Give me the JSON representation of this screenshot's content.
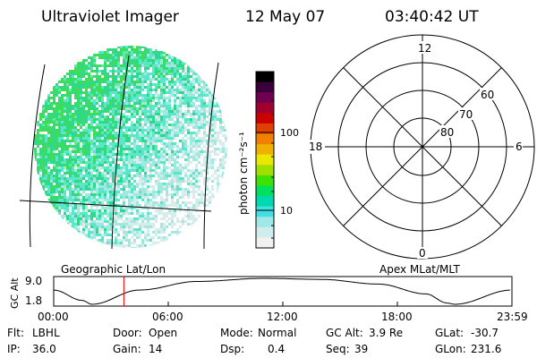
{
  "header": {
    "title": "Ultraviolet Imager",
    "date": "12 May 07",
    "time": "03:40:42 UT"
  },
  "colorbar": {
    "unit_label": "photon cm⁻²s⁻¹",
    "ticks": [
      "100",
      "10"
    ],
    "colors": [
      "#000000",
      "#3a003a",
      "#700050",
      "#a00030",
      "#cc0000",
      "#e04000",
      "#f08000",
      "#f0b000",
      "#e8e800",
      "#a0e000",
      "#40e000",
      "#00e060",
      "#00d8b0",
      "#40e0e0",
      "#a0e8e8",
      "#d0ecec",
      "#f0f0f0"
    ]
  },
  "image_panel": {
    "colors": [
      "#3ddc5a",
      "#2fd88c",
      "#5ae6c8",
      "#a0e8e0",
      "#d8ecec",
      "#ffffff"
    ]
  },
  "polar_panel": {
    "mlt_labels": {
      "top": "12",
      "left": "18",
      "right": "6",
      "bottom": "0"
    },
    "lat_labels": [
      "60",
      "70",
      "80"
    ]
  },
  "orbit_panel": {
    "left_title": "Geographic Lat/Lon",
    "right_title": "Apex MLat/MLT",
    "y_axis_label": "GC Alt",
    "y_ticks": [
      "9.0",
      "1.8"
    ],
    "x_ticks": [
      "00:00",
      "06:00",
      "12:00",
      "18:00",
      "23:59"
    ],
    "marker_time_hours": 3.678,
    "marker_color": "#ff0000"
  },
  "info": {
    "flt_label": "Flt:",
    "flt_value": "LBHL",
    "ip_label": "IP:",
    "ip_value": "36.0",
    "door_label": "Door:",
    "door_value": "Open",
    "gain_label": "Gain:",
    "gain_value": "14",
    "mode_label": "Mode:",
    "mode_value": "Normal",
    "dsp_label": "Dsp:",
    "dsp_value": "0.4",
    "gcalt_label": "GC Alt:",
    "gcalt_value": "3.9 Re",
    "seq_label": "Seq:",
    "seq_value": "39",
    "glat_label": "GLat:",
    "glat_value": "-30.7",
    "glon_label": "GLon:",
    "glon_value": "231.6"
  }
}
